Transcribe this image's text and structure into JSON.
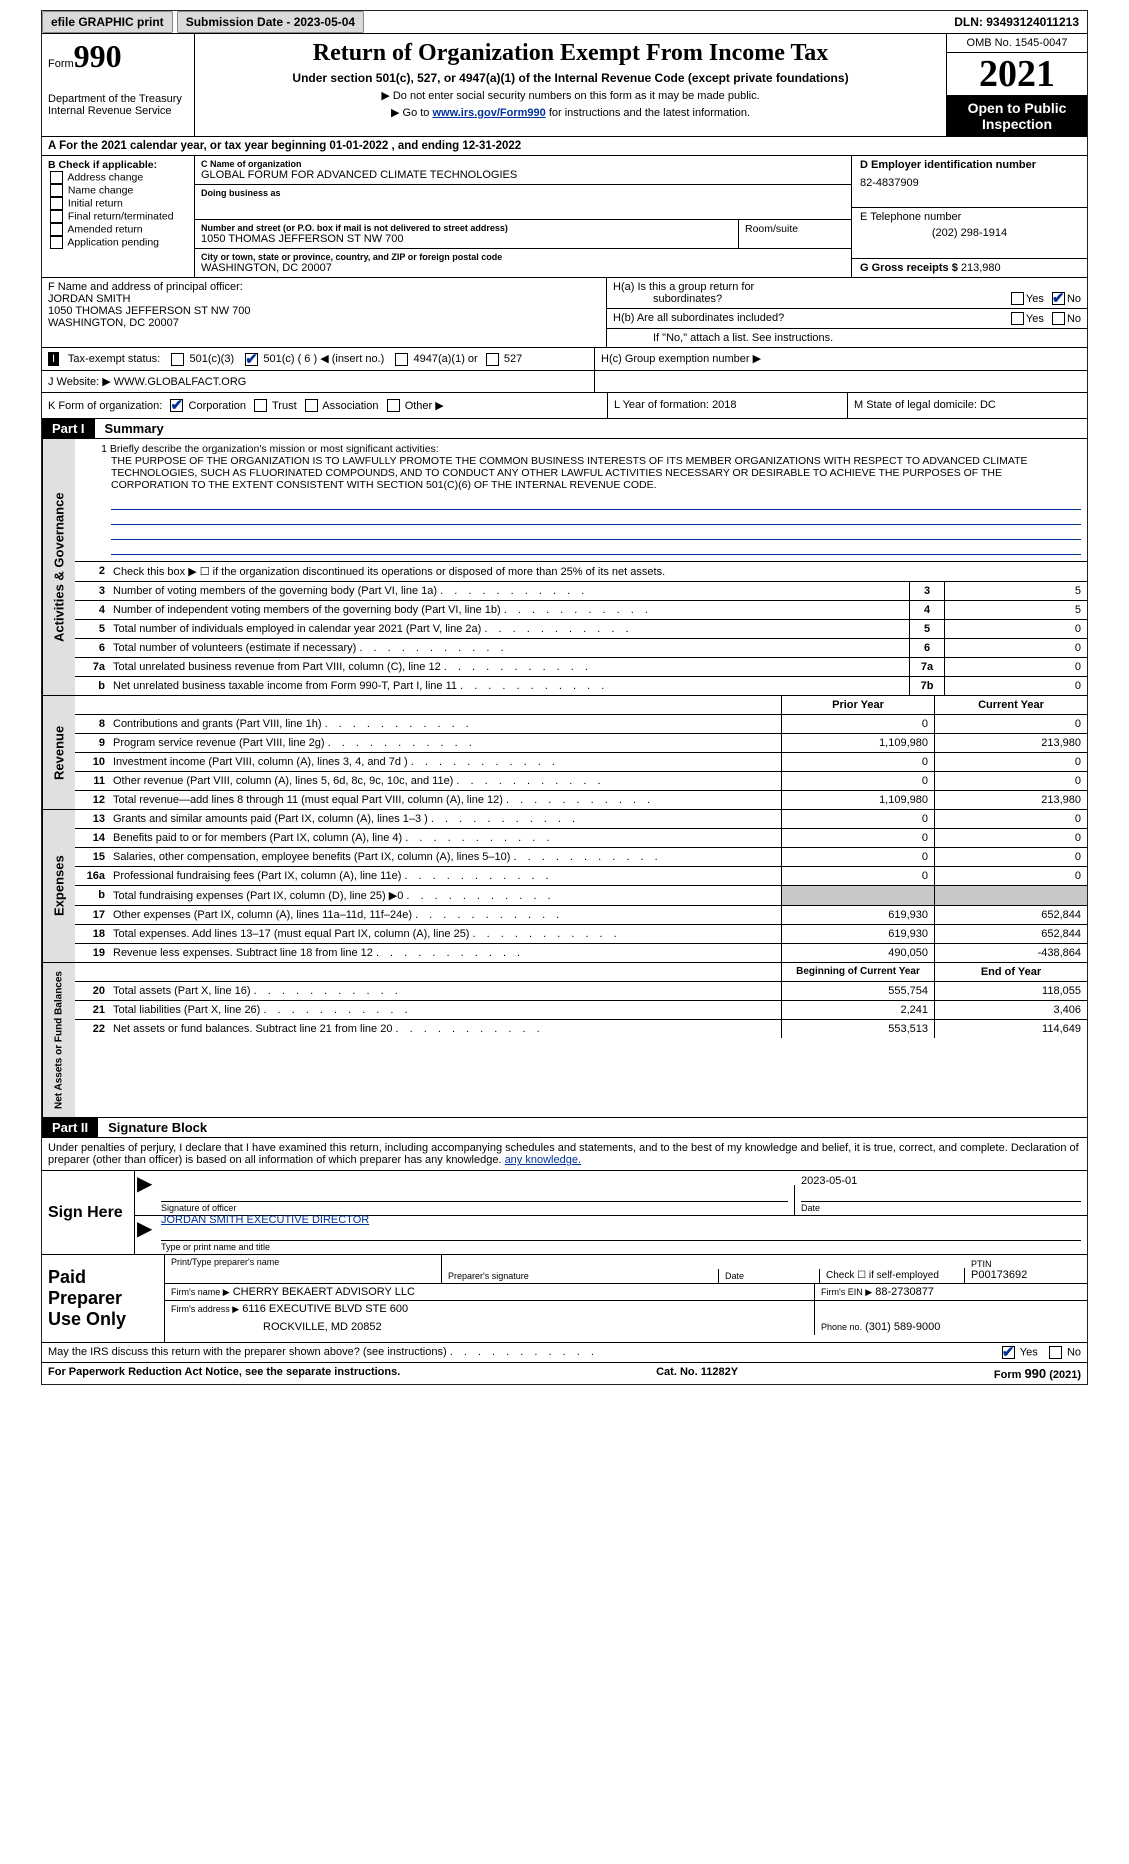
{
  "topbar": {
    "efile": "efile GRAPHIC print",
    "submission": "Submission Date - 2023-05-04",
    "dln": "DLN: 93493124011213"
  },
  "header": {
    "form_prefix": "Form",
    "form_number": "990",
    "title": "Return of Organization Exempt From Income Tax",
    "subtitle": "Under section 501(c), 527, or 4947(a)(1) of the Internal Revenue Code (except private foundations)",
    "note1": "▶ Do not enter social security numbers on this form as it may be made public.",
    "note2_pre": "▶ Go to ",
    "note2_link": "www.irs.gov/Form990",
    "note2_post": " for instructions and the latest information.",
    "dept": "Department of the Treasury Internal Revenue Service",
    "omb": "OMB No. 1545-0047",
    "year": "2021",
    "open_public": "Open to Public Inspection"
  },
  "row_a": "A For the 2021 calendar year, or tax year beginning 01-01-2022   , and ending 12-31-2022",
  "col_b": {
    "title": "B Check if applicable:",
    "items": [
      "Address change",
      "Name change",
      "Initial return",
      "Final return/terminated",
      "Amended return",
      "Application pending"
    ]
  },
  "col_c": {
    "name_lbl": "C Name of organization",
    "name": "GLOBAL FORUM FOR ADVANCED CLIMATE TECHNOLOGIES",
    "dba_lbl": "Doing business as",
    "dba": "",
    "street_lbl": "Number and street (or P.O. box if mail is not delivered to street address)",
    "street": "1050 THOMAS JEFFERSON ST NW 700",
    "room_lbl": "Room/suite",
    "city_lbl": "City or town, state or province, country, and ZIP or foreign postal code",
    "city": "WASHINGTON, DC  20007"
  },
  "col_d": {
    "ein_lbl": "D Employer identification number",
    "ein": "82-4837909",
    "phone_lbl": "E Telephone number",
    "phone": "(202) 298-1914",
    "gross_lbl": "G Gross receipts $",
    "gross": "213,980"
  },
  "row_f": {
    "lbl": "F Name and address of principal officer:",
    "name": "JORDAN SMITH",
    "street": "1050 THOMAS JEFFERSON ST NW 700",
    "city": "WASHINGTON, DC  20007"
  },
  "row_h": {
    "ha": "H(a)  Is this a group return for",
    "ha2": "subordinates?",
    "hb": "H(b)  Are all subordinates included?",
    "hb_note": "If \"No,\" attach a list. See instructions.",
    "hc": "H(c)  Group exemption number ▶"
  },
  "row_i": {
    "lbl": "Tax-exempt status:",
    "c3": "501(c)(3)",
    "c": "501(c) ( 6 ) ◀ (insert no.)",
    "a4947": "4947(a)(1) or",
    "s527": "527"
  },
  "row_j": {
    "lbl": "J   Website: ▶",
    "val": " WWW.GLOBALFACT.ORG"
  },
  "row_k": {
    "lbl": "K Form of organization:",
    "corp": "Corporation",
    "trust": "Trust",
    "assoc": "Association",
    "other": "Other ▶",
    "l_lbl": "L Year of formation:",
    "l_val": "2018",
    "m_lbl": "M State of legal domicile:",
    "m_val": "DC"
  },
  "part1": {
    "hdr": "Part I",
    "title": "Summary",
    "section_label": "Activities & Governance",
    "line1_lbl": "1",
    "line1_text": "Briefly describe the organization's mission or most significant activities:",
    "mission": "THE PURPOSE OF THE ORGANIZATION IS TO LAWFULLY PROMOTE THE COMMON BUSINESS INTERESTS OF ITS MEMBER ORGANIZATIONS WITH RESPECT TO ADVANCED CLIMATE TECHNOLOGIES, SUCH AS FLUORINATED COMPOUNDS, AND TO CONDUCT ANY OTHER LAWFUL ACTIVITIES NECESSARY OR DESIRABLE TO ACHIEVE THE PURPOSES OF THE CORPORATION TO THE EXTENT CONSISTENT WITH SECTION 501(C)(6) OF THE INTERNAL REVENUE CODE.",
    "line2_text": "Check this box ▶ ☐  if the organization discontinued its operations or disposed of more than 25% of its net assets.",
    "lines": [
      {
        "n": "3",
        "text": "Number of voting members of the governing body (Part VI, line 1a)",
        "box": "3",
        "val": "5"
      },
      {
        "n": "4",
        "text": "Number of independent voting members of the governing body (Part VI, line 1b)",
        "box": "4",
        "val": "5"
      },
      {
        "n": "5",
        "text": "Total number of individuals employed in calendar year 2021 (Part V, line 2a)",
        "box": "5",
        "val": "0"
      },
      {
        "n": "6",
        "text": "Total number of volunteers (estimate if necessary)",
        "box": "6",
        "val": "0"
      },
      {
        "n": "7a",
        "text": "Total unrelated business revenue from Part VIII, column (C), line 12",
        "box": "7a",
        "val": "0"
      },
      {
        "n": "b",
        "text": "Net unrelated business taxable income from Form 990-T, Part I, line 11",
        "box": "7b",
        "val": "0"
      }
    ]
  },
  "revenue": {
    "label": "Revenue",
    "hdr_prior": "Prior Year",
    "hdr_current": "Current Year",
    "lines": [
      {
        "n": "8",
        "text": "Contributions and grants (Part VIII, line 1h)",
        "prior": "0",
        "curr": "0"
      },
      {
        "n": "9",
        "text": "Program service revenue (Part VIII, line 2g)",
        "prior": "1,109,980",
        "curr": "213,980"
      },
      {
        "n": "10",
        "text": "Investment income (Part VIII, column (A), lines 3, 4, and 7d )",
        "prior": "0",
        "curr": "0"
      },
      {
        "n": "11",
        "text": "Other revenue (Part VIII, column (A), lines 5, 6d, 8c, 9c, 10c, and 11e)",
        "prior": "0",
        "curr": "0"
      },
      {
        "n": "12",
        "text": "Total revenue—add lines 8 through 11 (must equal Part VIII, column (A), line 12)",
        "prior": "1,109,980",
        "curr": "213,980"
      }
    ]
  },
  "expenses": {
    "label": "Expenses",
    "lines": [
      {
        "n": "13",
        "text": "Grants and similar amounts paid (Part IX, column (A), lines 1–3 )",
        "prior": "0",
        "curr": "0"
      },
      {
        "n": "14",
        "text": "Benefits paid to or for members (Part IX, column (A), line 4)",
        "prior": "0",
        "curr": "0"
      },
      {
        "n": "15",
        "text": "Salaries, other compensation, employee benefits (Part IX, column (A), lines 5–10)",
        "prior": "0",
        "curr": "0"
      },
      {
        "n": "16a",
        "text": "Professional fundraising fees (Part IX, column (A), line 11e)",
        "prior": "0",
        "curr": "0"
      },
      {
        "n": "b",
        "text": "Total fundraising expenses (Part IX, column (D), line 25) ▶0",
        "prior": "",
        "curr": "",
        "grey": true
      },
      {
        "n": "17",
        "text": "Other expenses (Part IX, column (A), lines 11a–11d, 11f–24e)",
        "prior": "619,930",
        "curr": "652,844"
      },
      {
        "n": "18",
        "text": "Total expenses. Add lines 13–17 (must equal Part IX, column (A), line 25)",
        "prior": "619,930",
        "curr": "652,844"
      },
      {
        "n": "19",
        "text": "Revenue less expenses. Subtract line 18 from line 12",
        "prior": "490,050",
        "curr": "-438,864"
      }
    ]
  },
  "netassets": {
    "label": "Net Assets or Fund Balances",
    "hdr_begin": "Beginning of Current Year",
    "hdr_end": "End of Year",
    "lines": [
      {
        "n": "20",
        "text": "Total assets (Part X, line 16)",
        "prior": "555,754",
        "curr": "118,055"
      },
      {
        "n": "21",
        "text": "Total liabilities (Part X, line 26)",
        "prior": "2,241",
        "curr": "3,406"
      },
      {
        "n": "22",
        "text": "Net assets or fund balances. Subtract line 21 from line 20",
        "prior": "553,513",
        "curr": "114,649"
      }
    ]
  },
  "part2": {
    "hdr": "Part II",
    "title": "Signature Block",
    "intro": "Under penalties of perjury, I declare that I have examined this return, including accompanying schedules and statements, and to the best of my knowledge and belief, it is true, correct, and complete. Declaration of preparer (other than officer) is based on all information of which preparer has any knowledge.",
    "sign_here": "Sign Here",
    "sig_officer_lbl": "Signature of officer",
    "sig_date": "2023-05-01",
    "date_lbl": "Date",
    "officer_name": "JORDAN SMITH  EXECUTIVE DIRECTOR",
    "officer_lbl": "Type or print name and title",
    "paid_prep": "Paid Preparer Use Only",
    "prep_name_lbl": "Print/Type preparer's name",
    "prep_sig_lbl": "Preparer's signature",
    "prep_date_lbl": "Date",
    "self_emp": "Check ☐ if self-employed",
    "ptin_lbl": "PTIN",
    "ptin": "P00173692",
    "firm_name_lbl": "Firm's name    ▶",
    "firm_name": "CHERRY BEKAERT ADVISORY LLC",
    "firm_ein_lbl": "Firm's EIN ▶",
    "firm_ein": "88-2730877",
    "firm_addr_lbl": "Firm's address ▶",
    "firm_addr1": "6116 EXECUTIVE BLVD STE 600",
    "firm_addr2": "ROCKVILLE, MD  20852",
    "firm_phone_lbl": "Phone no.",
    "firm_phone": "(301) 589-9000",
    "discuss": "May the IRS discuss this return with the preparer shown above? (see instructions)",
    "yes": "Yes",
    "no": "No"
  },
  "footer": {
    "left": "For Paperwork Reduction Act Notice, see the separate instructions.",
    "center": "Cat. No. 11282Y",
    "right": "Form 990 (2021)"
  }
}
